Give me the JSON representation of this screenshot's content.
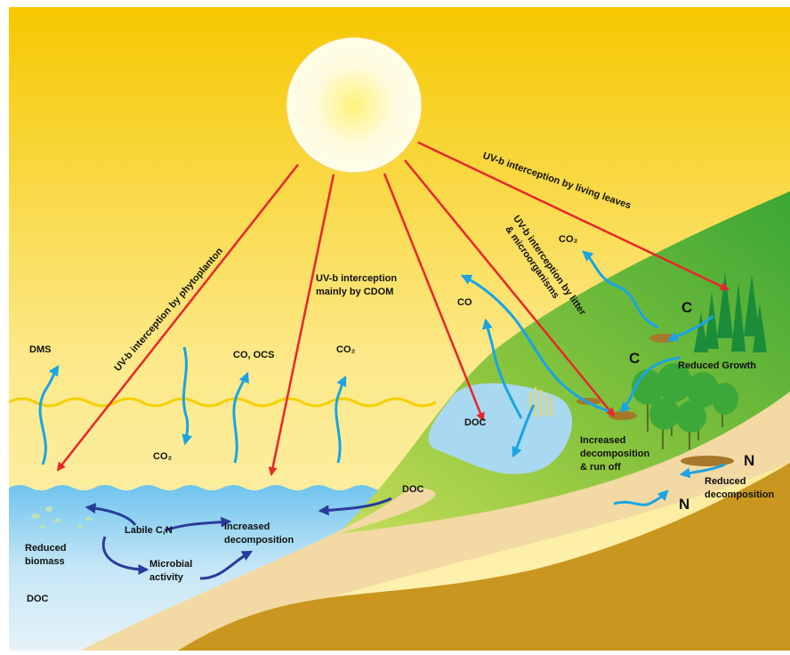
{
  "uv_labels": {
    "phytoplankton": "UV-b interception by phytoplanton",
    "cdom": [
      "UV-b interception",
      "mainly by CDOM"
    ],
    "litter": [
      "UV-b interception by litter",
      "& microorganisms"
    ],
    "leaves": "UV-b interception by living leaves"
  },
  "gases": {
    "dms": "DMS",
    "co_ocs": "CO, OCS",
    "co2_air": "CO₂",
    "co2_water": "CO₂",
    "co": "CO",
    "co2_land": "CO₂"
  },
  "ocean": {
    "doc_stream": "DOC",
    "doc_bottom": "DOC",
    "reduced_biomass": [
      "Reduced",
      "biomass"
    ],
    "labile": "Labile C,N",
    "increased_decomposition": [
      "Increased",
      "decomposition"
    ],
    "microbial": [
      "Microbial",
      "activity"
    ]
  },
  "land": {
    "doc_lake": "DOC",
    "c_upper": "C",
    "c_lower": "C",
    "reduced_growth": "Reduced Growth",
    "runoff": [
      "Increased",
      "decomposition",
      "& run off"
    ],
    "n_upper": "N",
    "n_lower": "N",
    "reduced_decomposition": [
      "Reduced",
      "decomposition"
    ]
  }
}
